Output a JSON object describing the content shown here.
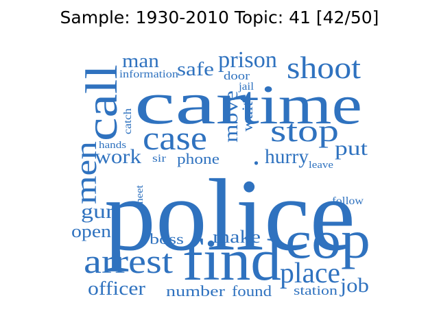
{
  "title": "Sample: 1930-2010 Topic: 41 [42/50]",
  "color": "#2f72bf",
  "words": {
    "police": "police",
    "car": "car",
    "time": "time",
    "find": "find",
    "cop": "cop",
    "call": "call",
    "shoot": "shoot",
    "stop": "stop",
    "case": "case",
    "arrest": "arrest",
    "men": "men",
    "place": "place",
    "prison": "prison",
    "move": "move",
    "man": "man",
    "safe": "safe",
    "information": "information",
    "door": "door",
    "jail": "jail",
    "wait": "wait",
    "catch": "catch",
    "hands": "hands",
    "work": "work",
    "sir": "sir",
    "phone": "phone",
    "hurry": "hurry",
    "leave": "leave",
    "put": "put",
    "gun": "gun",
    "meet": "meet",
    "open": "open",
    "boss": "boss",
    "make": "make",
    "follow": "follow",
    "officer": "officer",
    "number": "number",
    "found": "found",
    "station": "station",
    "job": "job",
    "dot": "."
  }
}
